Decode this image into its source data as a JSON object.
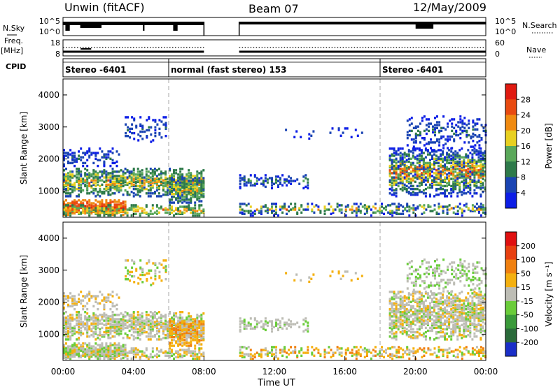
{
  "header": {
    "site": "Unwin (fitACF)",
    "beam": "Beam 07",
    "date": "12/May/2009"
  },
  "status_panel": {
    "nsky_label": "N.Sky",
    "freq_label_top": "Freq.",
    "freq_label_unit": "[MHz]",
    "cpid_label": "CPID",
    "nsearch_label": "N.Search",
    "nave_label": "Nave",
    "noise_ticks_left": [
      "10^5",
      "10^0"
    ],
    "noise_ticks_right": [
      "10^5",
      "10^0"
    ],
    "freq_ticks": [
      "18",
      "8"
    ],
    "nave_ticks": [
      "60",
      "0"
    ],
    "cpid_segments": [
      {
        "label": "Stereo -6401",
        "start_hour": 0
      },
      {
        "label": "normal (fast stereo) 153",
        "start_hour": 6
      },
      {
        "label": "Stereo -6401",
        "start_hour": 18
      }
    ]
  },
  "chart_data": [
    {
      "type": "heatmap",
      "name": "power",
      "ylabel": "Slant Range [km]",
      "xlabel": "Time UT",
      "x_ticks": [
        "00:00",
        "04:00",
        "08:00",
        "12:00",
        "16:00",
        "20:00",
        "00:00"
      ],
      "y_ticks": [
        "1000",
        "2000",
        "3000",
        "4000"
      ],
      "xlim_hours": [
        0,
        24
      ],
      "ylim_km": [
        180,
        4500
      ],
      "data_gap_hours": [
        8,
        10
      ],
      "colorbar": {
        "label": "Power [dB]",
        "ticks": [
          "4",
          "8",
          "12",
          "16",
          "20",
          "24",
          "28"
        ],
        "colors": [
          "#0d1ee6",
          "#1a44b3",
          "#2e7a4a",
          "#5aa85a",
          "#e8d020",
          "#f08a10",
          "#e84a10",
          "#e01a10"
        ]
      }
    },
    {
      "type": "heatmap",
      "name": "velocity",
      "ylabel": "Slant Range [km]",
      "xlabel": "Time UT",
      "x_ticks": [
        "00:00",
        "04:00",
        "08:00",
        "12:00",
        "16:00",
        "20:00",
        "00:00"
      ],
      "y_ticks": [
        "1000",
        "2000",
        "3000",
        "4000"
      ],
      "xlim_hours": [
        0,
        24
      ],
      "ylim_km": [
        180,
        4500
      ],
      "data_gap_hours": [
        8,
        10
      ],
      "colorbar": {
        "label": "Velocity [m s⁻¹]",
        "ticks": [
          "200",
          "100",
          "50",
          "15",
          "-15",
          "-50",
          "-100",
          "-200"
        ],
        "colors": [
          "#1a2ec8",
          "#2a6a3a",
          "#3a9a3a",
          "#6acc3a",
          "#bdbdb5",
          "#f4b010",
          "#f08010",
          "#e84010",
          "#e01010"
        ]
      }
    }
  ]
}
